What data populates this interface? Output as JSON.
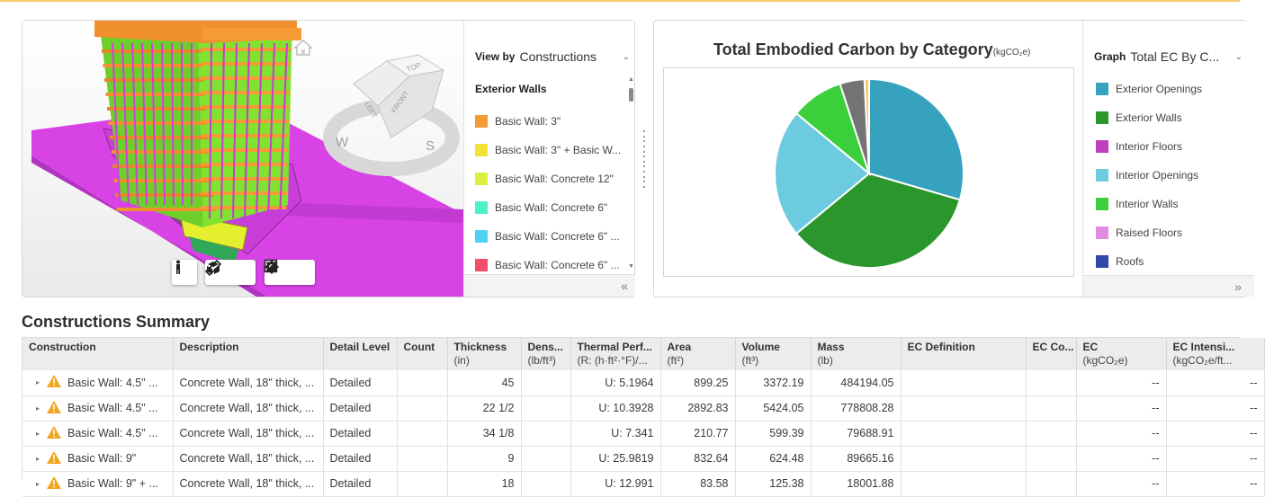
{
  "viewer": {
    "view_by_label": "View by",
    "view_by_value": "Constructions",
    "legend_heading": "Exterior Walls",
    "legend_items": [
      {
        "label": "Basic Wall: 3\"",
        "color": "#f49b35"
      },
      {
        "label": "Basic Wall: 3\" + Basic W...",
        "color": "#f5e236"
      },
      {
        "label": "Basic Wall: Concrete 12\"",
        "color": "#dcef3c"
      },
      {
        "label": "Basic Wall: Concrete 6\"",
        "color": "#4ef0c8"
      },
      {
        "label": "Basic Wall: Concrete 6\" ...",
        "color": "#4fd3f5"
      },
      {
        "label": "Basic Wall: Concrete 6\" ...",
        "color": "#f2506a"
      }
    ],
    "cube_labels": {
      "top": "TOP",
      "left": "LEFT",
      "front": "FRONT"
    },
    "compass_labels": {
      "west": "W",
      "south": "S"
    }
  },
  "chart": {
    "title": "Total Embodied Carbon by Category",
    "unit": "(kgCO₂e)",
    "graph_label": "Graph",
    "graph_value": "Total EC By C...",
    "legend": [
      {
        "label": "Exterior Openings",
        "color": "#36a2bd"
      },
      {
        "label": "Exterior Walls",
        "color": "#2a962b"
      },
      {
        "label": "Interior Floors",
        "color": "#c23fbc"
      },
      {
        "label": "Interior Openings",
        "color": "#6dcbe0"
      },
      {
        "label": "Interior Walls",
        "color": "#3ccf3c"
      },
      {
        "label": "Raised Floors",
        "color": "#e08ce0"
      },
      {
        "label": "Roofs",
        "color": "#2f4aa8"
      }
    ]
  },
  "chart_data": {
    "type": "pie",
    "title": "Total Embodied Carbon by Category",
    "unit": "(kgCO₂e)",
    "slices": [
      {
        "name": "Exterior Openings",
        "percent": 29.5,
        "color": "#36a2bd"
      },
      {
        "name": "Exterior Walls",
        "percent": 34.5,
        "color": "#2a962b"
      },
      {
        "name": "Interior Openings",
        "percent": 22.0,
        "color": "#6dcbe0"
      },
      {
        "name": "Interior Walls",
        "percent": 9.0,
        "color": "#3ccf3c"
      },
      {
        "name": "",
        "percent": 4.2,
        "color": "#737373"
      },
      {
        "name": "",
        "percent": 0.8,
        "color": "#f5c86a"
      }
    ]
  },
  "summary": {
    "title": "Constructions Summary",
    "columns": [
      {
        "label": "Construction",
        "sub": ""
      },
      {
        "label": "Description",
        "sub": ""
      },
      {
        "label": "Detail Level",
        "sub": ""
      },
      {
        "label": "Count",
        "sub": ""
      },
      {
        "label": "Thickness",
        "sub": "(in)"
      },
      {
        "label": "Dens...",
        "sub": "(lb/ft³)"
      },
      {
        "label": "Thermal Perf...",
        "sub": "(R: (h·ft²·°F)/..."
      },
      {
        "label": "Area",
        "sub": "(ft²)"
      },
      {
        "label": "Volume",
        "sub": "(ft³)"
      },
      {
        "label": "Mass",
        "sub": "(lb)"
      },
      {
        "label": "EC Definition",
        "sub": ""
      },
      {
        "label": "EC Co...",
        "sub": ""
      },
      {
        "label": "EC",
        "sub": "(kgCO₂e)"
      },
      {
        "label": "EC Intensi...",
        "sub": "(kgCO₂e/ft..."
      }
    ],
    "rows": [
      {
        "construction": "Basic Wall: 4.5\" ...",
        "description": "Concrete Wall, 18\" thick, ...",
        "detail": "Detailed",
        "count": "",
        "thickness": "45",
        "density": "",
        "thermal": "U: 5.1964",
        "area": "899.25",
        "volume": "3372.19",
        "mass": "484194.05",
        "ec_def": "",
        "ec_co": "",
        "ec": "--",
        "ec_int": "--"
      },
      {
        "construction": "Basic Wall: 4.5\" ...",
        "description": "Concrete Wall, 18\" thick, ...",
        "detail": "Detailed",
        "count": "",
        "thickness": "22 1/2",
        "density": "",
        "thermal": "U: 10.3928",
        "area": "2892.83",
        "volume": "5424.05",
        "mass": "778808.28",
        "ec_def": "",
        "ec_co": "",
        "ec": "--",
        "ec_int": "--"
      },
      {
        "construction": "Basic Wall: 4.5\" ...",
        "description": "Concrete Wall, 18\" thick, ...",
        "detail": "Detailed",
        "count": "",
        "thickness": "34 1/8",
        "density": "",
        "thermal": "U: 7.341",
        "area": "210.77",
        "volume": "599.39",
        "mass": "79688.91",
        "ec_def": "",
        "ec_co": "",
        "ec": "--",
        "ec_int": "--"
      },
      {
        "construction": "Basic Wall: 9\"",
        "description": "Concrete Wall, 18\" thick, ...",
        "detail": "Detailed",
        "count": "",
        "thickness": "9",
        "density": "",
        "thermal": "U: 25.9819",
        "area": "832.64",
        "volume": "624.48",
        "mass": "89665.16",
        "ec_def": "",
        "ec_co": "",
        "ec": "--",
        "ec_int": "--"
      },
      {
        "construction": "Basic Wall: 9\" + ...",
        "description": "Concrete Wall, 18\" thick, ...",
        "detail": "Detailed",
        "count": "",
        "thickness": "18",
        "density": "",
        "thermal": "U: 12.991",
        "area": "83.58",
        "volume": "125.38",
        "mass": "18001.88",
        "ec_def": "",
        "ec_co": "",
        "ec": "--",
        "ec_int": "--"
      }
    ]
  }
}
